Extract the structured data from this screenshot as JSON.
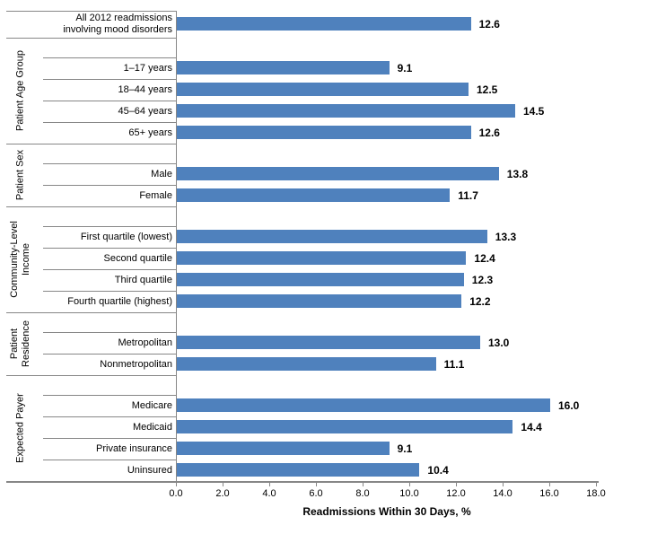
{
  "chart_data": {
    "type": "bar",
    "orientation": "horizontal",
    "title": "",
    "xlabel": "Readmissions Within 30 Days, %",
    "xlim": [
      0,
      18
    ],
    "xticks": [
      "0.0",
      "2.0",
      "4.0",
      "6.0",
      "8.0",
      "10.0",
      "12.0",
      "14.0",
      "16.0",
      "18.0"
    ],
    "grid": false,
    "legend": false,
    "bar_color": "#4F81BD",
    "axis_color": "#878787",
    "groups": [
      {
        "label": "",
        "items": [
          {
            "label": "All 2012 readmissions\ninvolving mood disorders",
            "value": 12.6,
            "value_label": "12.6"
          }
        ]
      },
      {
        "label": "Patient Age Group",
        "items": [
          {
            "label": "1–17 years",
            "value": 9.1,
            "value_label": "9.1"
          },
          {
            "label": "18–44 years",
            "value": 12.5,
            "value_label": "12.5"
          },
          {
            "label": "45–64 years",
            "value": 14.5,
            "value_label": "14.5"
          },
          {
            "label": "65+ years",
            "value": 12.6,
            "value_label": "12.6"
          }
        ]
      },
      {
        "label": "Patient Sex",
        "items": [
          {
            "label": "Male",
            "value": 13.8,
            "value_label": "13.8"
          },
          {
            "label": "Female",
            "value": 11.7,
            "value_label": "11.7"
          }
        ]
      },
      {
        "label": "Community-Level\nIncome",
        "items": [
          {
            "label": "First quartile (lowest)",
            "value": 13.3,
            "value_label": "13.3"
          },
          {
            "label": "Second quartile",
            "value": 12.4,
            "value_label": "12.4"
          },
          {
            "label": "Third quartile",
            "value": 12.3,
            "value_label": "12.3"
          },
          {
            "label": "Fourth quartile (highest)",
            "value": 12.2,
            "value_label": "12.2"
          }
        ]
      },
      {
        "label": "Patient\nResidence",
        "items": [
          {
            "label": "Metropolitan",
            "value": 13.0,
            "value_label": "13.0"
          },
          {
            "label": "Nonmetropolitan",
            "value": 11.1,
            "value_label": "11.1"
          }
        ]
      },
      {
        "label": "Expected Payer",
        "items": [
          {
            "label": "Medicare",
            "value": 16.0,
            "value_label": "16.0"
          },
          {
            "label": "Medicaid",
            "value": 14.4,
            "value_label": "14.4"
          },
          {
            "label": "Private insurance",
            "value": 9.1,
            "value_label": "9.1"
          },
          {
            "label": "Uninsured",
            "value": 10.4,
            "value_label": "10.4"
          }
        ]
      }
    ]
  }
}
